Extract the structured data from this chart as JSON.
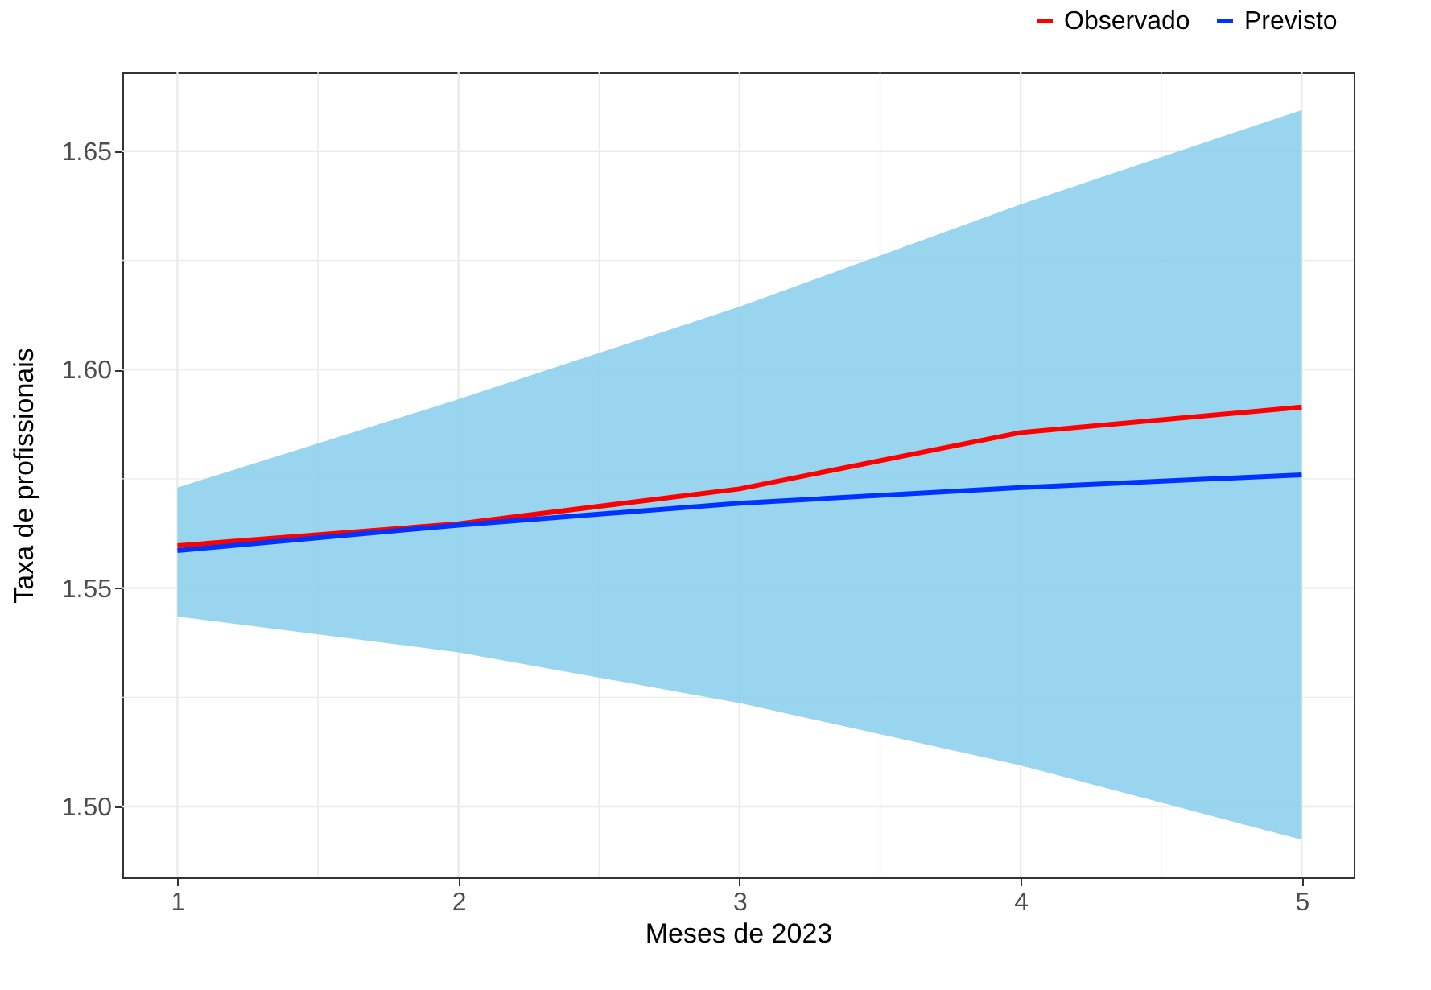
{
  "chart_data": {
    "type": "line",
    "xlabel": "Meses de 2023",
    "ylabel": "Taxa de profissionais",
    "x": [
      1,
      2,
      3,
      4,
      5
    ],
    "series": [
      {
        "name": "Observado",
        "color": "#ff0000",
        "values": [
          1.5597,
          1.5647,
          1.5727,
          1.5856,
          1.5914
        ]
      },
      {
        "name": "Previsto",
        "color": "#0033ff",
        "values": [
          1.5586,
          1.5644,
          1.5694,
          1.573,
          1.5759
        ],
        "lower": [
          1.5435,
          1.5353,
          1.5237,
          1.5094,
          1.4924
        ],
        "upper": [
          1.573,
          1.5932,
          1.6144,
          1.6378,
          1.6594
        ]
      }
    ],
    "xlim": [
      0.804,
      5.185
    ],
    "ylim": [
      1.4838,
      1.668
    ],
    "xticks": [
      1,
      2,
      3,
      4,
      5
    ],
    "yticks": [
      {
        "value": 1.5,
        "label": "1.50"
      },
      {
        "value": 1.55,
        "label": "1.55"
      },
      {
        "value": 1.6,
        "label": "1.60"
      },
      {
        "value": 1.65,
        "label": "1.65"
      }
    ],
    "grid": true,
    "legend": "top right",
    "line_style": "solid",
    "marker": "none"
  }
}
